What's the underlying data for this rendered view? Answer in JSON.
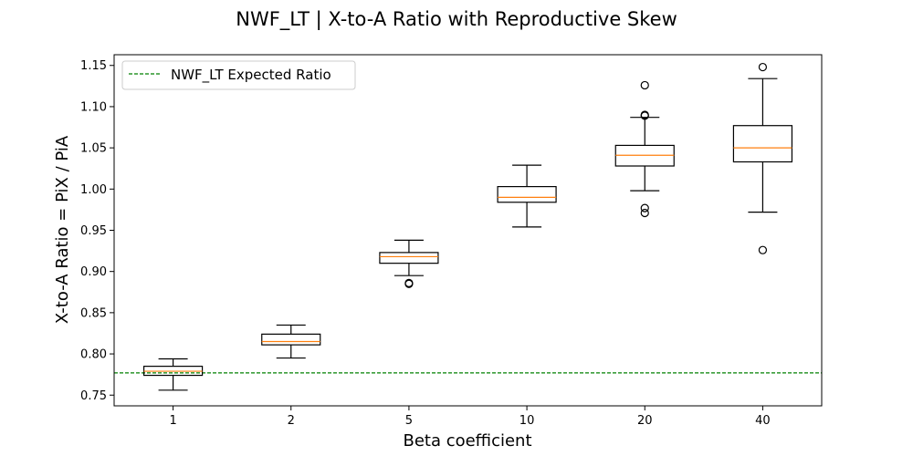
{
  "chart_data": {
    "type": "box",
    "title": "NWF_LT | X-to-A Ratio with Reproductive Skew",
    "xlabel": "Beta coefficient",
    "ylabel": "X-to-A Ratio = PiX / PiA",
    "categories": [
      "1",
      "2",
      "5",
      "10",
      "20",
      "40"
    ],
    "ylim": [
      0.737,
      1.163
    ],
    "yticks": [
      "0.75",
      "0.80",
      "0.85",
      "0.90",
      "0.95",
      "1.00",
      "1.05",
      "1.10",
      "1.15"
    ],
    "grid": false,
    "legend": {
      "placement": "top-left",
      "entries": [
        {
          "label": "NWF_LT Expected Ratio",
          "style": "dashed",
          "color": "#008000"
        }
      ]
    },
    "reference_line": {
      "name": "NWF_LT Expected Ratio",
      "y": 0.777,
      "color": "#008000",
      "style": "dashed"
    },
    "boxes": [
      {
        "category": "1",
        "whisker_low": 0.756,
        "q1": 0.774,
        "median": 0.779,
        "q3": 0.785,
        "whisker_high": 0.794,
        "outliers": []
      },
      {
        "category": "2",
        "whisker_low": 0.795,
        "q1": 0.811,
        "median": 0.815,
        "q3": 0.824,
        "whisker_high": 0.835,
        "outliers": []
      },
      {
        "category": "5",
        "whisker_low": 0.895,
        "q1": 0.91,
        "median": 0.918,
        "q3": 0.923,
        "whisker_high": 0.938,
        "outliers": [
          0.886,
          0.885
        ]
      },
      {
        "category": "10",
        "whisker_low": 0.954,
        "q1": 0.984,
        "median": 0.99,
        "q3": 1.003,
        "whisker_high": 1.029,
        "outliers": []
      },
      {
        "category": "20",
        "whisker_low": 0.998,
        "q1": 1.028,
        "median": 1.041,
        "q3": 1.053,
        "whisker_high": 1.087,
        "outliers": [
          1.126,
          1.09,
          1.089,
          0.977,
          0.971
        ]
      },
      {
        "category": "40",
        "whisker_low": 0.972,
        "q1": 1.033,
        "median": 1.05,
        "q3": 1.077,
        "whisker_high": 1.134,
        "outliers": [
          1.148,
          0.926
        ]
      }
    ],
    "colors": {
      "box": "#000000",
      "median": "#ff7f0e",
      "reference": "#008000",
      "axes": "#000000",
      "background": "#ffffff"
    }
  }
}
